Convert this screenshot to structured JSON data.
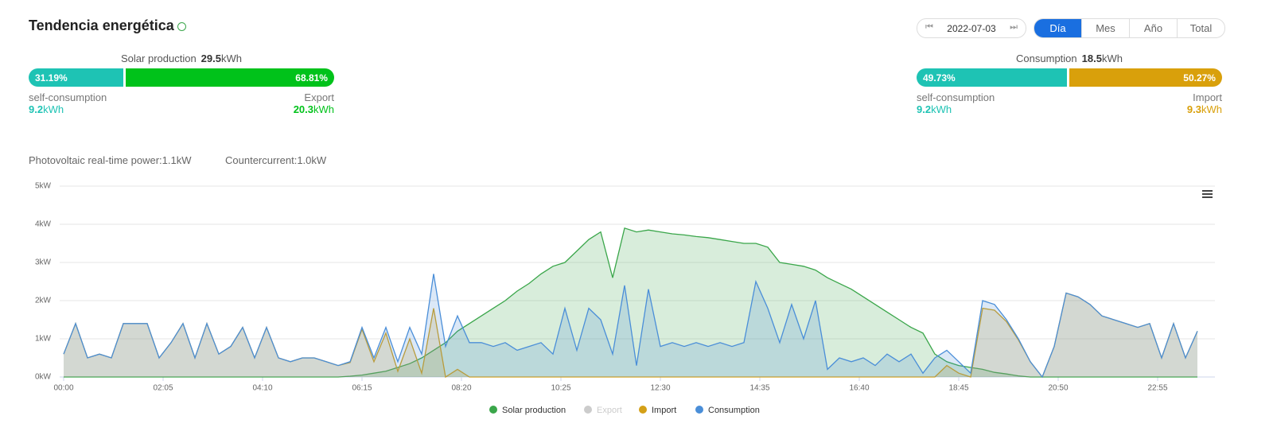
{
  "header": {
    "title": "Tendencia energética",
    "date": "2022-07-03",
    "tabs": [
      "Día",
      "Mes",
      "Año",
      "Total"
    ],
    "active_tab": 0
  },
  "unit": "kWh",
  "solar": {
    "label": "Solar production",
    "total": "29.5",
    "bar": {
      "values": [
        31.19,
        68.81
      ],
      "value_labels": [
        "31.19%",
        "68.81%"
      ],
      "colors": [
        "#1ec3b4",
        "#00c21a"
      ]
    },
    "left": {
      "label": "self-consumption",
      "value": "9.2"
    },
    "right": {
      "label": "Export",
      "value": "20.3"
    }
  },
  "consumption": {
    "label": "Consumption",
    "total": "18.5",
    "bar": {
      "values": [
        49.73,
        50.27
      ],
      "value_labels": [
        "49.73%",
        "50.27%"
      ],
      "colors": [
        "#1ec3b4",
        "#d9a00b"
      ]
    },
    "left": {
      "label": "self-consumption",
      "value": "9.2"
    },
    "right": {
      "label": "Import",
      "value": "9.3"
    }
  },
  "info": [
    "Photovoltaic real-time power:1.1kW",
    "Countercurrent:1.0kW"
  ],
  "chart_data": {
    "type": "area",
    "x": [
      0,
      15,
      30,
      45,
      60,
      75,
      90,
      105,
      120,
      135,
      150,
      165,
      180,
      195,
      210,
      225,
      240,
      255,
      270,
      285,
      300,
      315,
      330,
      345,
      360,
      375,
      390,
      405,
      420,
      435,
      450,
      465,
      480,
      495,
      510,
      525,
      540,
      555,
      570,
      585,
      600,
      615,
      630,
      645,
      660,
      675,
      690,
      705,
      720,
      735,
      750,
      765,
      780,
      795,
      810,
      825,
      840,
      855,
      870,
      885,
      900,
      915,
      930,
      945,
      960,
      975,
      990,
      1005,
      1020,
      1035,
      1050,
      1065,
      1080,
      1095,
      1110,
      1125,
      1140,
      1155,
      1170,
      1185,
      1200,
      1215,
      1230,
      1245,
      1260,
      1275,
      1290,
      1305,
      1320,
      1335,
      1350,
      1365,
      1380,
      1395,
      1410,
      1425
    ],
    "xlim": [
      0,
      1440
    ],
    "xticks": [
      {
        "value": 0,
        "label": "00:00"
      },
      {
        "value": 125,
        "label": "02:05"
      },
      {
        "value": 250,
        "label": "04:10"
      },
      {
        "value": 375,
        "label": "06:15"
      },
      {
        "value": 500,
        "label": "08:20"
      },
      {
        "value": 625,
        "label": "10:25"
      },
      {
        "value": 750,
        "label": "12:30"
      },
      {
        "value": 875,
        "label": "14:35"
      },
      {
        "value": 1000,
        "label": "16:40"
      },
      {
        "value": 1125,
        "label": "18:45"
      },
      {
        "value": 1250,
        "label": "20:50"
      },
      {
        "value": 1375,
        "label": "22:55"
      }
    ],
    "ylim": [
      0,
      5
    ],
    "yticks": [
      {
        "value": 0,
        "label": "0kW"
      },
      {
        "value": 1,
        "label": "1kW"
      },
      {
        "value": 2,
        "label": "2kW"
      },
      {
        "value": 3,
        "label": "3kW"
      },
      {
        "value": 4,
        "label": "4kW"
      },
      {
        "value": 5,
        "label": "5kW"
      }
    ],
    "grid": true,
    "series": [
      {
        "name": "Solar production",
        "color": "#3aa64a",
        "visible": true,
        "values": [
          0,
          0,
          0,
          0,
          0,
          0,
          0,
          0,
          0,
          0,
          0,
          0,
          0,
          0,
          0,
          0,
          0,
          0,
          0,
          0,
          0,
          0,
          0,
          0,
          0.02,
          0.05,
          0.1,
          0.15,
          0.25,
          0.35,
          0.5,
          0.7,
          0.9,
          1.2,
          1.4,
          1.6,
          1.8,
          2.0,
          2.25,
          2.45,
          2.7,
          2.9,
          3.0,
          3.3,
          3.6,
          3.8,
          2.6,
          3.9,
          3.8,
          3.85,
          3.8,
          3.75,
          3.72,
          3.68,
          3.65,
          3.6,
          3.55,
          3.5,
          3.5,
          3.4,
          3.0,
          2.95,
          2.9,
          2.8,
          2.6,
          2.45,
          2.3,
          2.1,
          1.9,
          1.7,
          1.5,
          1.3,
          1.15,
          0.6,
          0.4,
          0.3,
          0.25,
          0.2,
          0.12,
          0.08,
          0.03,
          0,
          0,
          0,
          0,
          0,
          0,
          0,
          0,
          0,
          0,
          0,
          0,
          0,
          0,
          0
        ]
      },
      {
        "name": "Export",
        "color": "#cccccc",
        "visible": false
      },
      {
        "name": "Import",
        "color": "#d4a017",
        "visible": true,
        "values": [
          0.6,
          1.4,
          0.5,
          0.6,
          0.5,
          1.4,
          1.4,
          1.4,
          0.5,
          0.9,
          1.4,
          0.5,
          1.4,
          0.6,
          0.8,
          1.3,
          0.5,
          1.3,
          0.5,
          0.4,
          0.5,
          0.5,
          0.4,
          0.3,
          0.38,
          1.25,
          0.4,
          1.15,
          0.15,
          1.0,
          0.1,
          1.8,
          0,
          0.2,
          0,
          0,
          0,
          0,
          0,
          0,
          0,
          0,
          0,
          0,
          0,
          0,
          0,
          0,
          0,
          0,
          0,
          0,
          0,
          0,
          0,
          0,
          0,
          0,
          0,
          0,
          0,
          0,
          0,
          0,
          0,
          0,
          0,
          0,
          0,
          0,
          0,
          0,
          0,
          0,
          0.3,
          0.1,
          0,
          1.8,
          1.75,
          1.45,
          0.97,
          0.4,
          0,
          0.8,
          2.2,
          2.1,
          1.9,
          1.6,
          1.5,
          1.4,
          1.3,
          1.4,
          0.5,
          1.4,
          0.5,
          1.2
        ]
      },
      {
        "name": "Consumption",
        "color": "#4a8ed8",
        "visible": true,
        "values": [
          0.6,
          1.4,
          0.5,
          0.6,
          0.5,
          1.4,
          1.4,
          1.4,
          0.5,
          0.9,
          1.4,
          0.5,
          1.4,
          0.6,
          0.8,
          1.3,
          0.5,
          1.3,
          0.5,
          0.4,
          0.5,
          0.5,
          0.4,
          0.3,
          0.4,
          1.3,
          0.5,
          1.3,
          0.4,
          1.3,
          0.6,
          2.7,
          0.8,
          1.6,
          0.9,
          0.9,
          0.8,
          0.9,
          0.7,
          0.8,
          0.9,
          0.6,
          1.8,
          0.7,
          1.8,
          1.5,
          0.6,
          2.4,
          0.3,
          2.3,
          0.8,
          0.9,
          0.8,
          0.9,
          0.8,
          0.9,
          0.8,
          0.9,
          2.5,
          1.8,
          0.9,
          1.9,
          1.0,
          2.0,
          0.2,
          0.5,
          0.4,
          0.5,
          0.3,
          0.6,
          0.4,
          0.6,
          0.1,
          0.5,
          0.7,
          0.4,
          0.1,
          2.0,
          1.9,
          1.5,
          1.0,
          0.4,
          0.0,
          0.8,
          2.2,
          2.1,
          1.9,
          1.6,
          1.5,
          1.4,
          1.3,
          1.4,
          0.5,
          1.4,
          0.5,
          1.2
        ]
      }
    ]
  }
}
